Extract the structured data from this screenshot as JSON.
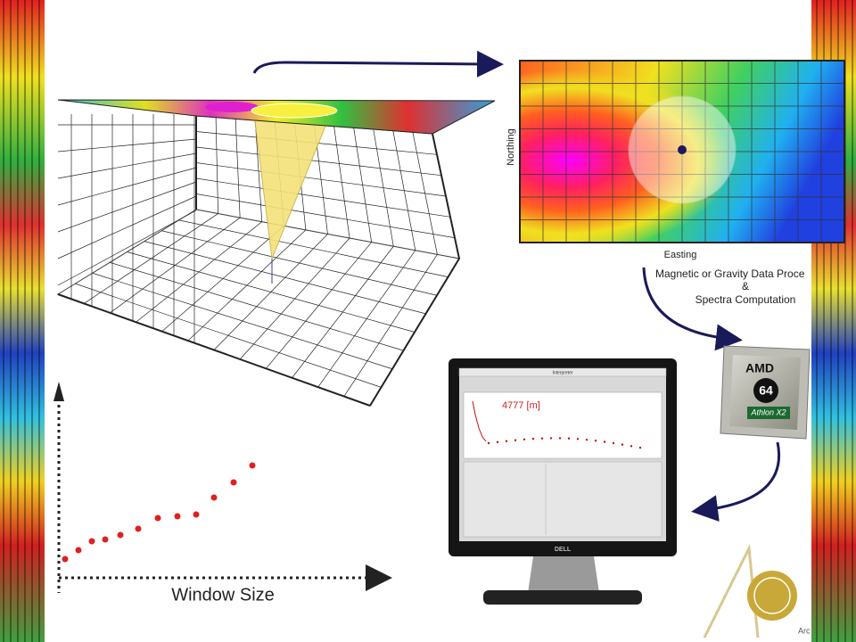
{
  "heatmap": {
    "y_label": "Northing",
    "x_label": "Easting"
  },
  "process": {
    "line1": "Magnetic or Gravity Data Proce",
    "line2": "&",
    "line3": "Spectra Computation"
  },
  "monitor": {
    "window_title": "Interpreter",
    "depth_label": "4777 [m]",
    "brand": "DELL"
  },
  "chip": {
    "brand": "AMD",
    "bits": "64",
    "model": "Athlon X2"
  },
  "plot": {
    "x_label": "Window Size"
  },
  "logo": {
    "text": "Arc"
  }
}
